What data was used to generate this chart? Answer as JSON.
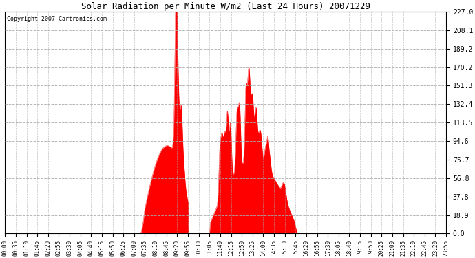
{
  "title": "Solar Radiation per Minute W/m2 (Last 24 Hours) 20071229",
  "copyright": "Copyright 2007 Cartronics.com",
  "bg_color": "#ffffff",
  "plot_bg_color": "#ffffff",
  "fill_color": "#ff0000",
  "line_color": "#ff0000",
  "grid_color": "#aaaaaa",
  "zero_line_color": "#ff0000",
  "ylim": [
    0.0,
    227.0
  ],
  "yticks": [
    0.0,
    18.9,
    37.8,
    56.8,
    75.7,
    94.6,
    113.5,
    132.4,
    151.3,
    170.2,
    189.2,
    208.1,
    227.0
  ],
  "xtick_labels": [
    "00:00",
    "00:35",
    "01:10",
    "01:45",
    "02:20",
    "02:55",
    "03:30",
    "04:05",
    "04:40",
    "05:15",
    "05:50",
    "06:25",
    "07:00",
    "07:35",
    "08:10",
    "08:45",
    "09:20",
    "09:55",
    "10:30",
    "11:05",
    "11:40",
    "12:15",
    "12:50",
    "13:25",
    "14:00",
    "14:35",
    "15:10",
    "15:45",
    "16:20",
    "16:55",
    "17:30",
    "18:05",
    "18:40",
    "19:15",
    "19:50",
    "20:25",
    "21:00",
    "21:35",
    "22:10",
    "22:45",
    "23:20",
    "23:55"
  ],
  "n_points": 1440
}
